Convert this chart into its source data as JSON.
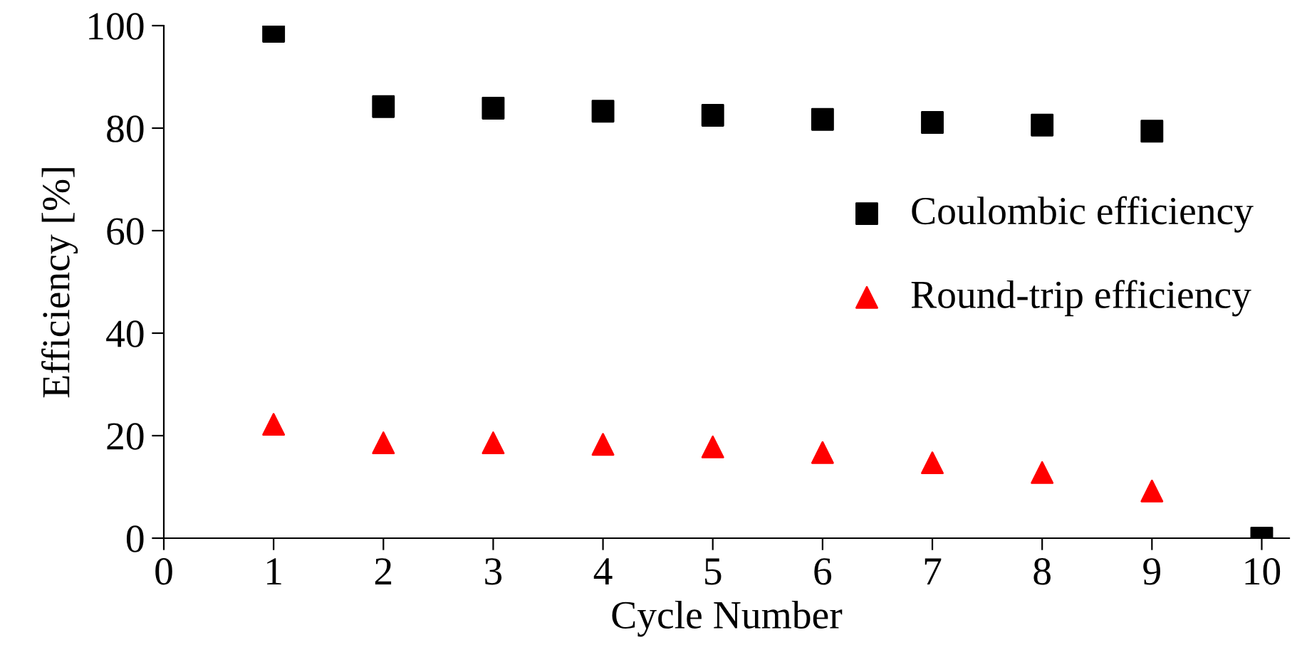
{
  "chart_data": {
    "type": "scatter",
    "xlabel": "Cycle Number",
    "ylabel": "Efficiency [%]",
    "x": [
      1,
      2,
      3,
      4,
      5,
      6,
      7,
      8,
      9,
      10
    ],
    "series": [
      {
        "name": "Coulombic efficiency",
        "color": "#000000",
        "marker": "square",
        "values": [
          98.9,
          84.2,
          83.9,
          83.3,
          82.5,
          81.7,
          81.1,
          80.6,
          79.4,
          0
        ]
      },
      {
        "name": "Round-trip efficiency",
        "color": "#ff0000",
        "marker": "triangle",
        "values": [
          22.2,
          18.6,
          18.6,
          18.3,
          17.8,
          16.7,
          14.7,
          12.8,
          9.2,
          null
        ]
      }
    ],
    "xlim": [
      0,
      10.25
    ],
    "xticks": [
      0,
      1,
      2,
      3,
      4,
      5,
      6,
      7,
      8,
      9,
      10
    ],
    "ylim": [
      0,
      100
    ],
    "yticks": [
      0,
      20,
      40,
      60,
      80,
      100
    ],
    "grid": false,
    "legend": "right"
  }
}
